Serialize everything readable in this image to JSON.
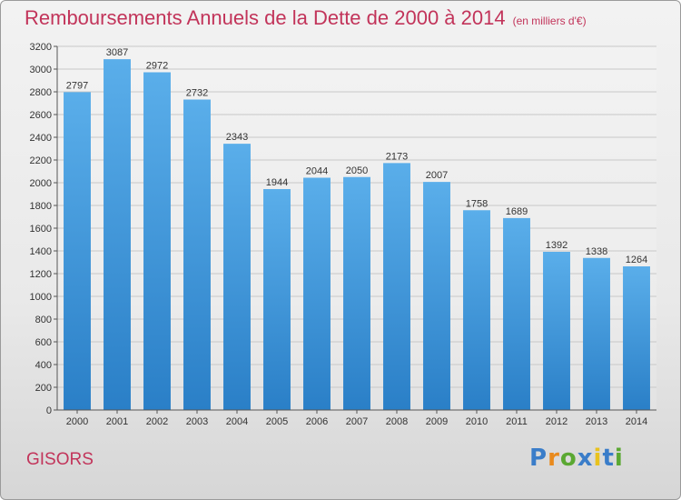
{
  "header": {
    "title": "Remboursements Annuels de la Dette de 2000 à 2014",
    "subtitle": "(en milliers d'€)"
  },
  "footer": {
    "town": "GISORS",
    "logo": "Proxiti"
  },
  "colors": {
    "title": "#c2345a",
    "bar_top": "#5aaeea",
    "bar_bottom": "#2a7fc7",
    "logo_p": "#3a7dc9",
    "logo_r": "#e98a1d",
    "logo_o": "#5aa832",
    "logo_x": "#3a7dc9",
    "logo_i1": "#e9c21d",
    "logo_t": "#3a7dc9",
    "logo_i2": "#5aa832"
  },
  "chart_data": {
    "type": "bar",
    "title": "Remboursements Annuels de la Dette de 2000 à 2014",
    "subtitle": "(en milliers d'€)",
    "xlabel": "",
    "ylabel": "",
    "categories": [
      "2000",
      "2001",
      "2002",
      "2003",
      "2004",
      "2005",
      "2006",
      "2007",
      "2008",
      "2009",
      "2010",
      "2011",
      "2012",
      "2013",
      "2014"
    ],
    "values": [
      2797,
      3087,
      2972,
      2732,
      2343,
      1944,
      2044,
      2050,
      2173,
      2007,
      1758,
      1689,
      1392,
      1338,
      1264
    ],
    "ylim": [
      0,
      3200
    ],
    "yticks": [
      0,
      200,
      400,
      600,
      800,
      1000,
      1200,
      1400,
      1600,
      1800,
      2000,
      2200,
      2400,
      2600,
      2800,
      3000,
      3200
    ],
    "grid": true,
    "legend": "none"
  }
}
